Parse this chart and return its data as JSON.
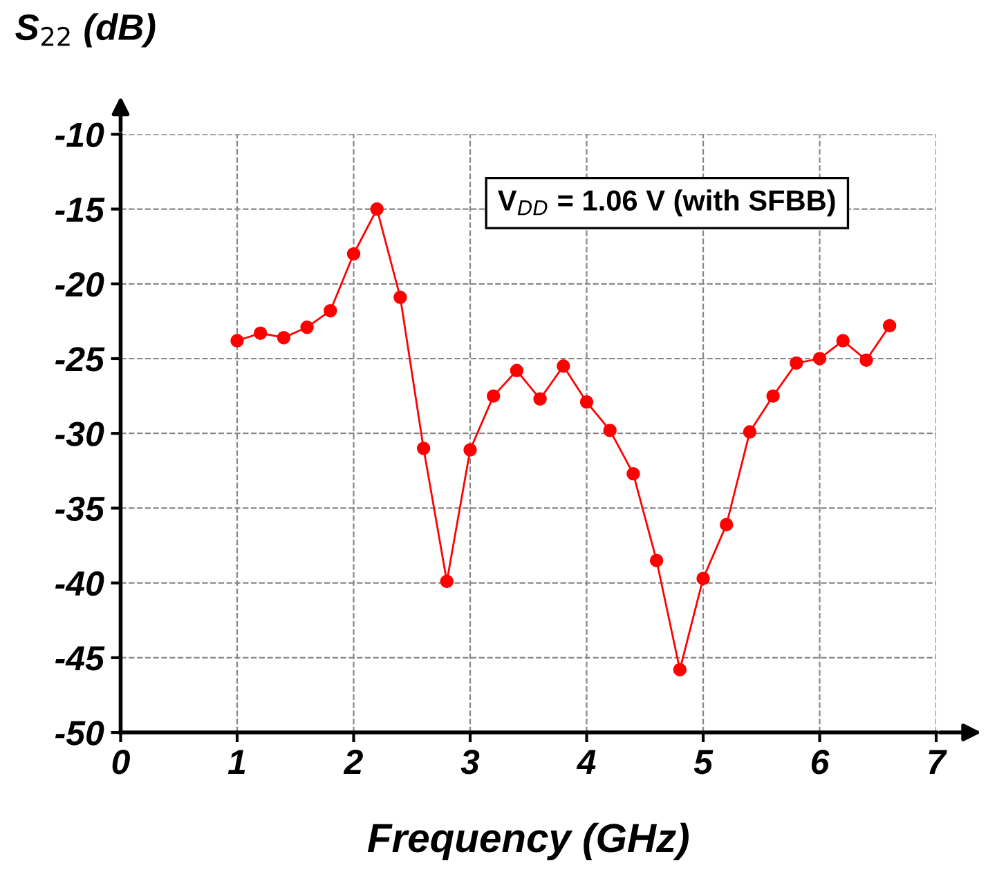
{
  "chart_data": {
    "type": "line",
    "ylabel": "S$_{22}$ (dB)",
    "xlabel": "Frequency (GHz)",
    "annotations": [
      "V$_{DD}$ = 1.06 V (with SFBB)"
    ],
    "x": [
      1.0,
      1.2,
      1.4,
      1.6,
      1.8,
      2.0,
      2.2,
      2.4,
      2.6,
      2.8,
      3.0,
      3.2,
      3.4,
      3.6,
      3.8,
      4.0,
      4.2,
      4.4,
      4.6,
      4.8,
      5.0,
      5.2,
      5.4,
      5.6,
      5.8,
      6.0,
      6.2,
      6.4,
      6.6
    ],
    "series": [
      {
        "color": "#ff0000",
        "values": [
          -23.8,
          -23.3,
          -23.6,
          -22.9,
          -21.8,
          -18.0,
          -15.0,
          -20.9,
          -31.0,
          -39.9,
          -31.1,
          -27.5,
          -25.8,
          -27.7,
          -25.5,
          -27.9,
          -29.8,
          -32.7,
          -38.5,
          -45.8,
          -39.7,
          -36.1,
          -29.9,
          -27.5,
          -25.3,
          -25.0,
          -23.8,
          -25.1,
          -22.8
        ]
      }
    ],
    "xlim": [
      0,
      7
    ],
    "xticks": [
      0,
      1,
      2,
      3,
      4,
      5,
      6,
      7
    ],
    "ylim": [
      -50,
      -10
    ],
    "yticks": [
      -50,
      -45,
      -40,
      -35,
      -30,
      -25,
      -20,
      -15,
      -10
    ],
    "grid": true,
    "marker": "circle",
    "line_style": "solid",
    "legend": false
  }
}
